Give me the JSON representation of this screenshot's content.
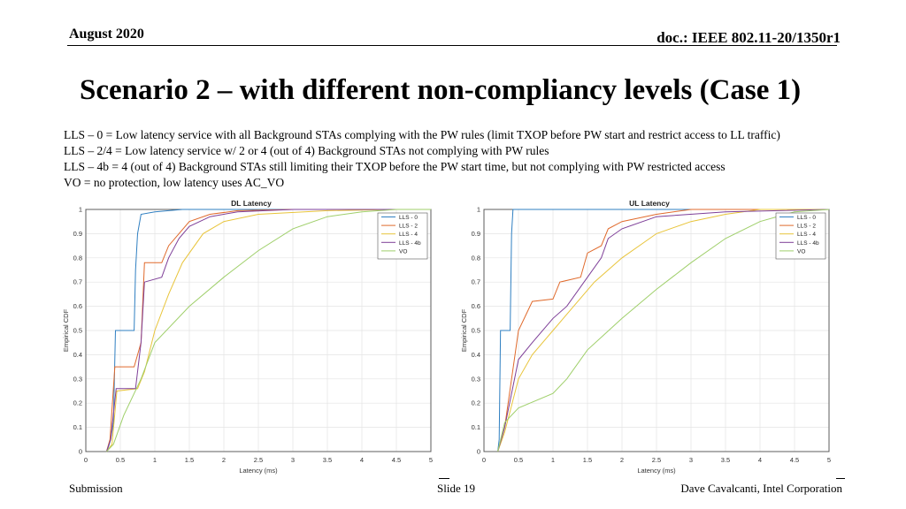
{
  "header": {
    "date": "August 2020",
    "doc": "doc.: IEEE 802.11-20/1350r1"
  },
  "title": "Scenario 2 – with different non-compliancy levels (Case 1)",
  "notes": [
    "LLS – 0 = Low latency service with all Background STAs complying with  the PW rules (limit TXOP before PW start and restrict access to LL traffic)",
    "LLS – 2/4 = Low latency service w/ 2 or 4 (out of 4) Background STAs not complying with PW rules",
    "LLS – 4b = 4 (out of 4) Background STAs still limiting their TXOP before the PW start time, but not complying with PW restricted access",
    "VO  = no protection, low latency uses AC_VO"
  ],
  "footer": {
    "left": "Submission",
    "center": "Slide 19",
    "right": "Dave Cavalcanti, Intel Corporation"
  },
  "chart_data": [
    {
      "type": "line",
      "title": "DL Latency",
      "xlabel": "Latency (ms)",
      "ylabel": "Empirical CDF",
      "xlim": [
        0,
        5
      ],
      "ylim": [
        0,
        1
      ],
      "xticks": [
        "0",
        "0.5",
        "1",
        "1.5",
        "2",
        "2.5",
        "3",
        "3.5",
        "4",
        "4.5",
        "5"
      ],
      "yticks": [
        "0",
        "0.1",
        "0.2",
        "0.3",
        "0.4",
        "0.5",
        "0.6",
        "0.7",
        "0.8",
        "0.9",
        "1"
      ],
      "grid": true,
      "legend_position": "top-right",
      "series": [
        {
          "name": "LLS - 0",
          "color": "#2f7fc1",
          "points": [
            [
              0.3,
              0
            ],
            [
              0.33,
              0.02
            ],
            [
              0.36,
              0.05
            ],
            [
              0.4,
              0.12
            ],
            [
              0.43,
              0.5
            ],
            [
              0.7,
              0.5
            ],
            [
              0.72,
              0.75
            ],
            [
              0.75,
              0.9
            ],
            [
              0.8,
              0.98
            ],
            [
              1.0,
              0.99
            ],
            [
              1.4,
              1.0
            ],
            [
              5,
              1.0
            ]
          ]
        },
        {
          "name": "LLS - 2",
          "color": "#e06a2c",
          "points": [
            [
              0.3,
              0
            ],
            [
              0.35,
              0.05
            ],
            [
              0.42,
              0.35
            ],
            [
              0.7,
              0.35
            ],
            [
              0.8,
              0.45
            ],
            [
              0.85,
              0.78
            ],
            [
              1.1,
              0.78
            ],
            [
              1.2,
              0.85
            ],
            [
              1.35,
              0.9
            ],
            [
              1.5,
              0.95
            ],
            [
              1.8,
              0.98
            ],
            [
              2.2,
              0.995
            ],
            [
              3,
              1.0
            ],
            [
              5,
              1.0
            ]
          ]
        },
        {
          "name": "LLS - 4",
          "color": "#e8c43a",
          "points": [
            [
              0.3,
              0
            ],
            [
              0.38,
              0.03
            ],
            [
              0.45,
              0.25
            ],
            [
              0.75,
              0.26
            ],
            [
              0.85,
              0.33
            ],
            [
              1.0,
              0.5
            ],
            [
              1.2,
              0.65
            ],
            [
              1.4,
              0.78
            ],
            [
              1.7,
              0.9
            ],
            [
              2.0,
              0.95
            ],
            [
              2.5,
              0.98
            ],
            [
              3.5,
              0.995
            ],
            [
              4.5,
              1.0
            ],
            [
              5,
              1.0
            ]
          ]
        },
        {
          "name": "LLS - 4b",
          "color": "#7e3f98",
          "points": [
            [
              0.3,
              0
            ],
            [
              0.36,
              0.05
            ],
            [
              0.44,
              0.26
            ],
            [
              0.72,
              0.26
            ],
            [
              0.8,
              0.45
            ],
            [
              0.85,
              0.7
            ],
            [
              1.1,
              0.72
            ],
            [
              1.2,
              0.8
            ],
            [
              1.35,
              0.88
            ],
            [
              1.5,
              0.93
            ],
            [
              1.8,
              0.97
            ],
            [
              2.2,
              0.99
            ],
            [
              3,
              1.0
            ],
            [
              5,
              1.0
            ]
          ]
        },
        {
          "name": "VO",
          "color": "#9fcf6a",
          "points": [
            [
              0.3,
              0
            ],
            [
              0.4,
              0.03
            ],
            [
              0.55,
              0.15
            ],
            [
              0.8,
              0.3
            ],
            [
              1.0,
              0.45
            ],
            [
              1.5,
              0.6
            ],
            [
              2.0,
              0.72
            ],
            [
              2.5,
              0.83
            ],
            [
              3.0,
              0.92
            ],
            [
              3.5,
              0.97
            ],
            [
              4.0,
              0.99
            ],
            [
              4.5,
              1.0
            ],
            [
              5,
              1.0
            ]
          ]
        }
      ]
    },
    {
      "type": "line",
      "title": "UL Latency",
      "xlabel": "Latency (ms)",
      "ylabel": "Empirical CDF",
      "xlim": [
        0,
        5
      ],
      "ylim": [
        0,
        1
      ],
      "xticks": [
        "0",
        "0.5",
        "1",
        "1.5",
        "2",
        "2.5",
        "3",
        "3.5",
        "4",
        "4.5",
        "5"
      ],
      "yticks": [
        "0",
        "0.1",
        "0.2",
        "0.3",
        "0.4",
        "0.5",
        "0.6",
        "0.7",
        "0.8",
        "0.9",
        "1"
      ],
      "grid": true,
      "legend_position": "top-right",
      "series": [
        {
          "name": "LLS - 0",
          "color": "#2f7fc1",
          "points": [
            [
              0.2,
              0
            ],
            [
              0.22,
              0.05
            ],
            [
              0.24,
              0.5
            ],
            [
              0.38,
              0.5
            ],
            [
              0.4,
              0.9
            ],
            [
              0.42,
              1.0
            ],
            [
              5,
              1.0
            ]
          ]
        },
        {
          "name": "LLS - 2",
          "color": "#e06a2c",
          "points": [
            [
              0.2,
              0
            ],
            [
              0.3,
              0.1
            ],
            [
              0.5,
              0.5
            ],
            [
              0.7,
              0.62
            ],
            [
              1.0,
              0.63
            ],
            [
              1.1,
              0.7
            ],
            [
              1.4,
              0.72
            ],
            [
              1.5,
              0.82
            ],
            [
              1.7,
              0.85
            ],
            [
              1.8,
              0.92
            ],
            [
              2.0,
              0.95
            ],
            [
              2.5,
              0.98
            ],
            [
              3,
              1.0
            ],
            [
              5,
              1.0
            ]
          ]
        },
        {
          "name": "LLS - 4",
          "color": "#e8c43a",
          "points": [
            [
              0.2,
              0
            ],
            [
              0.3,
              0.08
            ],
            [
              0.5,
              0.3
            ],
            [
              0.7,
              0.4
            ],
            [
              1.0,
              0.5
            ],
            [
              1.3,
              0.6
            ],
            [
              1.6,
              0.7
            ],
            [
              2.0,
              0.8
            ],
            [
              2.3,
              0.86
            ],
            [
              2.5,
              0.9
            ],
            [
              3.0,
              0.95
            ],
            [
              3.5,
              0.98
            ],
            [
              4,
              1.0
            ],
            [
              5,
              1.0
            ]
          ]
        },
        {
          "name": "LLS - 4b",
          "color": "#7e3f98",
          "points": [
            [
              0.2,
              0
            ],
            [
              0.3,
              0.1
            ],
            [
              0.5,
              0.38
            ],
            [
              0.7,
              0.45
            ],
            [
              1.0,
              0.55
            ],
            [
              1.2,
              0.6
            ],
            [
              1.5,
              0.72
            ],
            [
              1.7,
              0.8
            ],
            [
              1.8,
              0.88
            ],
            [
              2.0,
              0.92
            ],
            [
              2.5,
              0.97
            ],
            [
              3.5,
              0.99
            ],
            [
              5,
              1.0
            ]
          ]
        },
        {
          "name": "VO",
          "color": "#9fcf6a",
          "points": [
            [
              0.2,
              0
            ],
            [
              0.3,
              0.12
            ],
            [
              0.5,
              0.18
            ],
            [
              1.0,
              0.24
            ],
            [
              1.2,
              0.3
            ],
            [
              1.5,
              0.42
            ],
            [
              2.0,
              0.55
            ],
            [
              2.5,
              0.67
            ],
            [
              3.0,
              0.78
            ],
            [
              3.5,
              0.88
            ],
            [
              4.0,
              0.95
            ],
            [
              4.5,
              0.99
            ],
            [
              5,
              1.0
            ]
          ]
        }
      ]
    }
  ]
}
